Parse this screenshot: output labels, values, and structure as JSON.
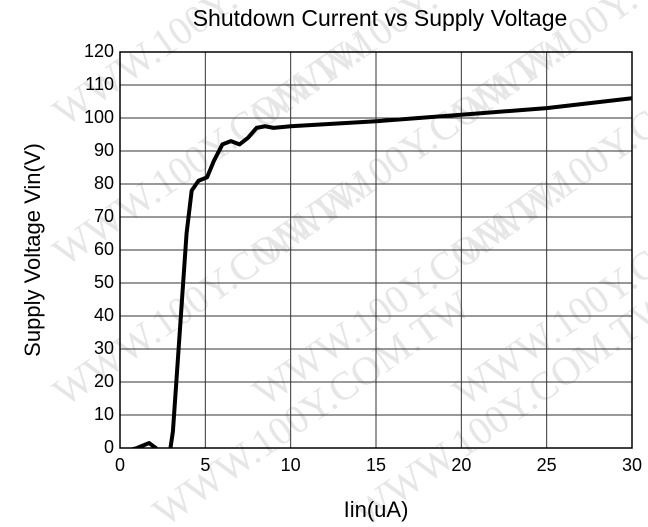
{
  "chart_data": {
    "type": "line",
    "title": "Shutdown Current vs Supply Voltage",
    "watermark": "WWW.100Y.COM.TW",
    "x_label": "Iin(uA)",
    "y_label": "Supply Voltage Vin(V)",
    "xlim": [
      0,
      30
    ],
    "xticks": [
      0,
      5,
      10,
      15,
      20,
      25,
      30
    ],
    "ylim": [
      0,
      120
    ],
    "yticks": [
      0,
      10,
      20,
      30,
      40,
      50,
      60,
      70,
      80,
      90,
      100,
      110,
      120
    ],
    "grid": true,
    "series": [
      {
        "color": "#000000",
        "x": [
          0.3,
          1.0,
          1.7,
          2.1,
          2.5,
          2.9,
          3.1,
          3.5,
          3.9,
          4.2,
          4.6,
          5.1,
          5.5,
          6.0,
          6.5,
          7.0,
          7.5,
          8.0,
          8.5,
          9.0,
          10,
          15,
          20,
          25,
          30
        ],
        "values": [
          -1,
          0,
          1.5,
          0,
          -5,
          -2,
          5,
          35,
          65,
          78,
          81,
          82,
          87,
          92,
          93,
          92,
          94,
          97,
          97.5,
          97,
          97.5,
          99,
          101,
          103,
          106
        ]
      }
    ]
  }
}
